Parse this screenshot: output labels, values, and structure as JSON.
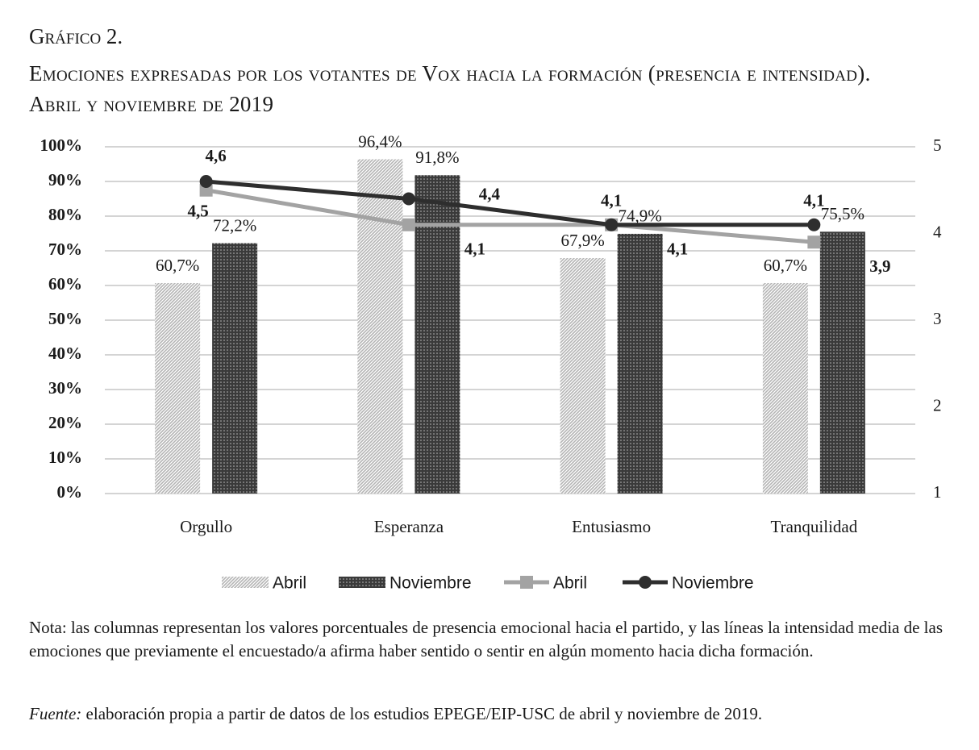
{
  "chart_data": {
    "type": "bar",
    "title_label": "Gráfico 2.",
    "title": "Emociones expresadas por los votantes de Vox hacia la formación (presencia e intensidad). Abril y noviembre de 2019",
    "categories": [
      "Orgullo",
      "Esperanza",
      "Entusiasmo",
      "Tranquilidad"
    ],
    "series": [
      {
        "name": "Abril",
        "type": "bar",
        "color": "#b5b5b5",
        "values": [
          60.7,
          96.4,
          67.9,
          60.7
        ],
        "value_labels": [
          "60,7%",
          "96,4%",
          "67,9%",
          "60,7%"
        ]
      },
      {
        "name": "Noviembre",
        "type": "bar",
        "color": "#3a3a3a",
        "values": [
          72.2,
          91.8,
          74.9,
          75.5
        ],
        "value_labels": [
          "72,2%",
          "91,8%",
          "74,9%",
          "75,5%"
        ]
      },
      {
        "name": "Abril",
        "type": "line",
        "axis": "y2",
        "color": "#a3a3a3",
        "values": [
          4.5,
          4.1,
          4.1,
          3.9
        ],
        "value_labels": [
          "4,5",
          "4,1",
          "4,1",
          "3,9"
        ]
      },
      {
        "name": "Noviembre",
        "type": "line",
        "axis": "y2",
        "color": "#2e2e2e",
        "values": [
          4.6,
          4.4,
          4.1,
          4.1
        ],
        "value_labels": [
          "4,6",
          "4,4",
          "4,1",
          "4,1"
        ]
      }
    ],
    "ylim": [
      0,
      100
    ],
    "yticks": [
      {
        "value": 0,
        "label": "0%"
      },
      {
        "value": 10,
        "label": "10%"
      },
      {
        "value": 20,
        "label": "20%"
      },
      {
        "value": 30,
        "label": "30%"
      },
      {
        "value": 40,
        "label": "40%"
      },
      {
        "value": 50,
        "label": "50%"
      },
      {
        "value": 60,
        "label": "60%"
      },
      {
        "value": 70,
        "label": "70%"
      },
      {
        "value": 80,
        "label": "80%"
      },
      {
        "value": 90,
        "label": "90%"
      },
      {
        "value": 100,
        "label": "100%"
      }
    ],
    "y2lim": [
      1,
      5
    ],
    "y2ticks": [
      1,
      2,
      3,
      4,
      5
    ],
    "grid": true,
    "legend": "bottom",
    "note": "Nota: las columnas representan los valores porcentuales de presencia emocional hacia el partido, y las líneas la intensidad media de las emociones que previamente el encuestado/a afirma haber sentido o sentir en algún momento hacia dicha formación.",
    "source_label": "Fuente:",
    "source": "elaboración propia a partir de datos de los estudios EPEGE/EIP-USC de abril y noviembre de 2019."
  }
}
